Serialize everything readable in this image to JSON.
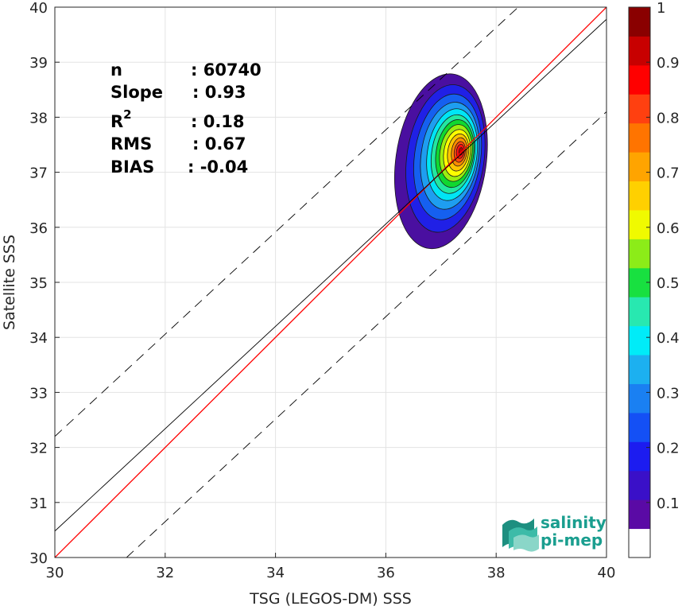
{
  "chart_data": {
    "type": "heatmap",
    "xlabel": "TSG (LEGOS-DM) SSS",
    "ylabel": "Satellite SSS",
    "xlim": [
      30,
      40
    ],
    "ylim": [
      30,
      40
    ],
    "x_ticks": [
      "30",
      "32",
      "34",
      "36",
      "38",
      "40"
    ],
    "y_ticks": [
      "30",
      "31",
      "32",
      "33",
      "34",
      "35",
      "36",
      "37",
      "38",
      "39",
      "40"
    ],
    "grid": true,
    "lines": [
      {
        "name": "one-to-one",
        "color": "#ff0000",
        "style": "solid",
        "points": [
          [
            30,
            30
          ],
          [
            40,
            40
          ]
        ]
      },
      {
        "name": "regression",
        "color": "#000000",
        "style": "solid",
        "points": [
          [
            30,
            30.48
          ],
          [
            40,
            39.78
          ]
        ]
      },
      {
        "name": "upper-bound",
        "color": "#000000",
        "style": "dashed",
        "points": [
          [
            30,
            32.2
          ],
          [
            38.4,
            40
          ]
        ]
      },
      {
        "name": "lower-bound",
        "color": "#000000",
        "style": "dashed",
        "points": [
          [
            31.3,
            30
          ],
          [
            40,
            38.1
          ]
        ]
      }
    ],
    "density_center": {
      "x": 37.35,
      "y": 37.35
    },
    "density_levels": [
      {
        "level": 0.05,
        "color": "#4a0fa0",
        "rx": 0.82,
        "ry": 1.6,
        "cx": 37.0,
        "cy": 37.2
      },
      {
        "level": 0.15,
        "color": "#2020e6",
        "rx": 0.7,
        "ry": 1.35,
        "cx": 37.08,
        "cy": 37.25
      },
      {
        "level": 0.25,
        "color": "#1560f0",
        "rx": 0.6,
        "ry": 1.15,
        "cx": 37.12,
        "cy": 37.28
      },
      {
        "level": 0.3,
        "color": "#1e9ef0",
        "rx": 0.52,
        "ry": 0.98,
        "cx": 37.16,
        "cy": 37.3
      },
      {
        "level": 0.4,
        "color": "#00e5f5",
        "rx": 0.45,
        "ry": 0.84,
        "cx": 37.2,
        "cy": 37.32
      },
      {
        "level": 0.45,
        "color": "#22e8a0",
        "rx": 0.39,
        "ry": 0.72,
        "cx": 37.22,
        "cy": 37.33
      },
      {
        "level": 0.5,
        "color": "#10d830",
        "rx": 0.34,
        "ry": 0.62,
        "cx": 37.25,
        "cy": 37.34
      },
      {
        "level": 0.6,
        "color": "#9cee10",
        "rx": 0.29,
        "ry": 0.52,
        "cx": 37.27,
        "cy": 37.35
      },
      {
        "level": 0.65,
        "color": "#ffff00",
        "rx": 0.24,
        "ry": 0.43,
        "cx": 37.29,
        "cy": 37.35
      },
      {
        "level": 0.7,
        "color": "#ffc400",
        "rx": 0.19,
        "ry": 0.34,
        "cx": 37.31,
        "cy": 37.36
      },
      {
        "level": 0.8,
        "color": "#ff8c00",
        "rx": 0.14,
        "ry": 0.26,
        "cx": 37.33,
        "cy": 37.37
      },
      {
        "level": 0.85,
        "color": "#ff4a10",
        "rx": 0.1,
        "ry": 0.19,
        "cx": 37.34,
        "cy": 37.37
      },
      {
        "level": 0.9,
        "color": "#ff1010",
        "rx": 0.07,
        "ry": 0.13,
        "cx": 37.35,
        "cy": 37.38
      },
      {
        "level": 1.0,
        "color": "#b80000",
        "rx": 0.035,
        "ry": 0.07,
        "cx": 37.36,
        "cy": 37.38
      }
    ],
    "colorbar": {
      "ticks": [
        "0.1",
        "0.2",
        "0.3",
        "0.4",
        "0.5",
        "0.6",
        "0.7",
        "0.8",
        "0.9",
        "1"
      ],
      "tick_values": [
        0.1,
        0.2,
        0.3,
        0.4,
        0.5,
        0.6,
        0.7,
        0.8,
        0.9,
        1.0
      ],
      "colors": [
        "#ffffff",
        "#5a0aa5",
        "#3a10c8",
        "#1c1cf0",
        "#1450f5",
        "#1a80f2",
        "#1cb0f0",
        "#00ecf8",
        "#28e8b0",
        "#18e040",
        "#8cec18",
        "#f0fa00",
        "#ffd000",
        "#ffa400",
        "#ff7400",
        "#ff4010",
        "#ff0000",
        "#c80000",
        "#8a0000"
      ]
    },
    "stats": [
      {
        "label": "n",
        "value": ": 60740"
      },
      {
        "label": "Slope",
        "value": ": 0.93"
      },
      {
        "label": "R",
        "sup": "2",
        "value": ": 0.18"
      },
      {
        "label": "RMS",
        "value": ": 0.67"
      },
      {
        "label": "BIAS",
        "value": ": -0.04"
      }
    ]
  },
  "logo": {
    "line1": "salinity",
    "line2": "pi-mep"
  }
}
